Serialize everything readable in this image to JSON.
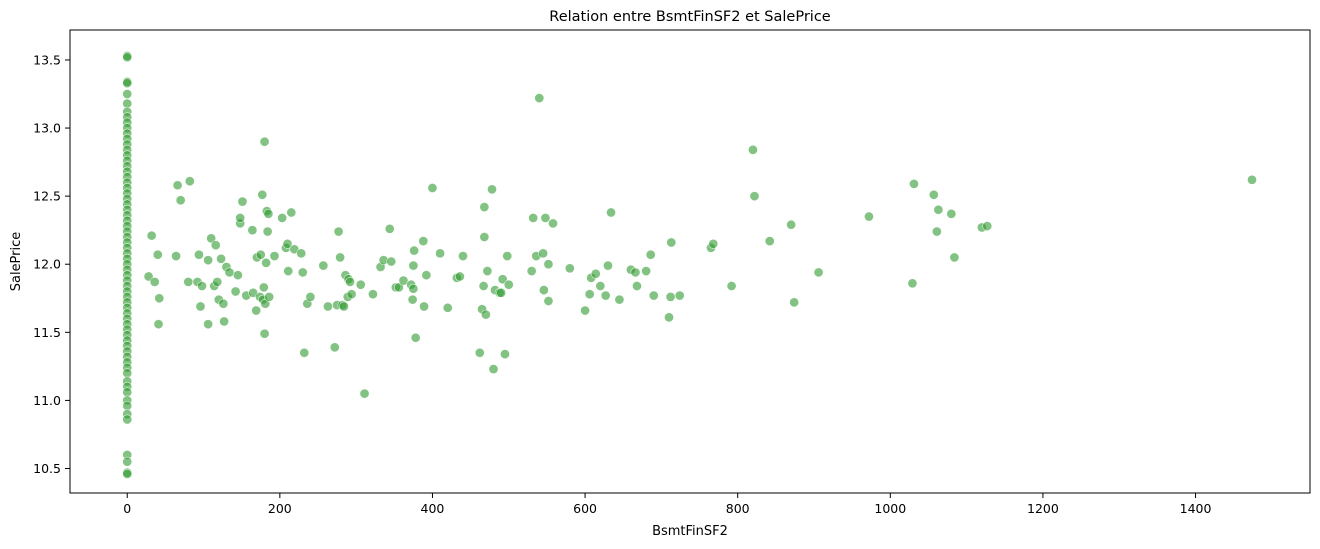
{
  "chart_data": {
    "type": "scatter",
    "title": "Relation entre BsmtFinSF2 et SalePrice",
    "xlabel": "BsmtFinSF2",
    "ylabel": "SalePrice",
    "xlim": [
      -75,
      1550
    ],
    "ylim": [
      10.32,
      13.72
    ],
    "xticks": [
      0,
      200,
      400,
      600,
      800,
      1000,
      1200,
      1400
    ],
    "xtick_labels": [
      "0",
      "200",
      "400",
      "600",
      "800",
      "1000",
      "1200",
      "1400"
    ],
    "yticks": [
      10.5,
      11.0,
      11.5,
      12.0,
      12.5,
      13.0,
      13.5
    ],
    "ytick_labels": [
      "10.5",
      "11.0",
      "11.5",
      "12.0",
      "12.5",
      "13.0",
      "13.5"
    ],
    "grid": false,
    "legend": false,
    "point_color": "#2e9a2e",
    "point_edge_color": "#ffffff",
    "point_alpha": 0.6,
    "series": [
      {
        "points": [
          [
            0,
            13.53
          ],
          [
            0,
            13.52
          ],
          [
            0,
            13.34
          ],
          [
            0,
            13.33
          ],
          [
            0,
            13.25
          ],
          [
            0,
            13.18
          ],
          [
            0,
            13.12
          ],
          [
            0,
            13.08
          ],
          [
            0,
            13.04
          ],
          [
            0,
            13.0
          ],
          [
            0,
            12.96
          ],
          [
            0,
            12.92
          ],
          [
            0,
            12.88
          ],
          [
            0,
            12.84
          ],
          [
            0,
            12.8
          ],
          [
            0,
            12.76
          ],
          [
            0,
            12.72
          ],
          [
            0,
            12.68
          ],
          [
            0,
            12.64
          ],
          [
            0,
            12.6
          ],
          [
            0,
            12.56
          ],
          [
            0,
            12.52
          ],
          [
            0,
            12.48
          ],
          [
            0,
            12.44
          ],
          [
            0,
            12.4
          ],
          [
            0,
            12.36
          ],
          [
            0,
            12.32
          ],
          [
            0,
            12.28
          ],
          [
            0,
            12.24
          ],
          [
            0,
            12.2
          ],
          [
            0,
            12.16
          ],
          [
            0,
            12.12
          ],
          [
            0,
            12.08
          ],
          [
            0,
            12.04
          ],
          [
            0,
            12.0
          ],
          [
            0,
            11.96
          ],
          [
            0,
            11.92
          ],
          [
            0,
            11.88
          ],
          [
            0,
            11.84
          ],
          [
            0,
            11.8
          ],
          [
            0,
            11.76
          ],
          [
            0,
            11.72
          ],
          [
            0,
            11.68
          ],
          [
            0,
            11.64
          ],
          [
            0,
            11.6
          ],
          [
            0,
            11.56
          ],
          [
            0,
            11.52
          ],
          [
            0,
            11.48
          ],
          [
            0,
            11.44
          ],
          [
            0,
            11.4
          ],
          [
            0,
            11.36
          ],
          [
            0,
            11.32
          ],
          [
            0,
            11.28
          ],
          [
            0,
            11.24
          ],
          [
            0,
            11.2
          ],
          [
            0,
            11.14
          ],
          [
            0,
            11.1
          ],
          [
            0,
            11.06
          ],
          [
            0,
            11.0
          ],
          [
            0,
            10.96
          ],
          [
            0,
            10.9
          ],
          [
            0,
            10.86
          ],
          [
            0,
            10.6
          ],
          [
            0,
            10.55
          ],
          [
            0,
            10.47
          ],
          [
            0,
            10.46
          ],
          [
            28,
            11.91
          ],
          [
            32,
            12.21
          ],
          [
            36,
            11.87
          ],
          [
            40,
            12.07
          ],
          [
            41,
            11.56
          ],
          [
            42,
            11.75
          ],
          [
            64,
            12.06
          ],
          [
            66,
            12.58
          ],
          [
            70,
            12.47
          ],
          [
            80,
            11.87
          ],
          [
            82,
            12.61
          ],
          [
            92,
            11.87
          ],
          [
            94,
            12.07
          ],
          [
            96,
            11.69
          ],
          [
            98,
            11.84
          ],
          [
            106,
            11.56
          ],
          [
            106,
            12.03
          ],
          [
            110,
            12.19
          ],
          [
            114,
            11.84
          ],
          [
            116,
            12.14
          ],
          [
            118,
            11.87
          ],
          [
            120,
            11.74
          ],
          [
            123,
            12.04
          ],
          [
            126,
            11.71
          ],
          [
            127,
            11.58
          ],
          [
            130,
            11.98
          ],
          [
            134,
            11.94
          ],
          [
            142,
            11.8
          ],
          [
            145,
            11.92
          ],
          [
            148,
            12.3
          ],
          [
            148,
            12.34
          ],
          [
            151,
            12.46
          ],
          [
            156,
            11.77
          ],
          [
            164,
            12.25
          ],
          [
            165,
            11.79
          ],
          [
            169,
            11.66
          ],
          [
            170,
            12.05
          ],
          [
            174,
            11.76
          ],
          [
            175,
            12.07
          ],
          [
            177,
            12.51
          ],
          [
            178,
            11.74
          ],
          [
            179,
            11.83
          ],
          [
            180,
            12.9
          ],
          [
            180,
            11.49
          ],
          [
            181,
            11.71
          ],
          [
            182,
            12.01
          ],
          [
            183,
            12.39
          ],
          [
            184,
            12.24
          ],
          [
            185,
            12.37
          ],
          [
            186,
            11.76
          ],
          [
            193,
            12.06
          ],
          [
            203,
            12.34
          ],
          [
            208,
            12.12
          ],
          [
            210,
            12.15
          ],
          [
            211,
            11.95
          ],
          [
            215,
            12.38
          ],
          [
            219,
            12.11
          ],
          [
            228,
            12.08
          ],
          [
            230,
            11.94
          ],
          [
            232,
            11.35
          ],
          [
            236,
            11.71
          ],
          [
            240,
            11.76
          ],
          [
            257,
            11.99
          ],
          [
            263,
            11.69
          ],
          [
            272,
            11.39
          ],
          [
            275,
            11.7
          ],
          [
            277,
            12.24
          ],
          [
            279,
            12.05
          ],
          [
            282,
            11.7
          ],
          [
            284,
            11.69
          ],
          [
            286,
            11.92
          ],
          [
            289,
            11.76
          ],
          [
            290,
            11.89
          ],
          [
            292,
            11.87
          ],
          [
            294,
            11.78
          ],
          [
            306,
            11.85
          ],
          [
            311,
            11.05
          ],
          [
            322,
            11.78
          ],
          [
            332,
            11.98
          ],
          [
            336,
            12.03
          ],
          [
            344,
            12.26
          ],
          [
            346,
            12.02
          ],
          [
            352,
            11.83
          ],
          [
            356,
            11.83
          ],
          [
            362,
            11.88
          ],
          [
            372,
            11.85
          ],
          [
            374,
            11.74
          ],
          [
            375,
            11.99
          ],
          [
            375,
            11.82
          ],
          [
            376,
            12.1
          ],
          [
            378,
            11.46
          ],
          [
            388,
            12.17
          ],
          [
            389,
            11.69
          ],
          [
            392,
            11.92
          ],
          [
            400,
            12.56
          ],
          [
            410,
            12.08
          ],
          [
            420,
            11.68
          ],
          [
            432,
            11.9
          ],
          [
            436,
            11.91
          ],
          [
            440,
            12.06
          ],
          [
            462,
            11.35
          ],
          [
            465,
            11.67
          ],
          [
            467,
            11.84
          ],
          [
            468,
            12.42
          ],
          [
            468,
            12.2
          ],
          [
            470,
            11.63
          ],
          [
            472,
            11.95
          ],
          [
            478,
            12.55
          ],
          [
            480,
            11.23
          ],
          [
            482,
            11.81
          ],
          [
            488,
            11.79
          ],
          [
            490,
            11.79
          ],
          [
            492,
            11.89
          ],
          [
            495,
            11.34
          ],
          [
            498,
            12.06
          ],
          [
            500,
            11.85
          ],
          [
            530,
            11.95
          ],
          [
            532,
            12.34
          ],
          [
            536,
            12.06
          ],
          [
            540,
            13.22
          ],
          [
            545,
            12.08
          ],
          [
            546,
            11.81
          ],
          [
            548,
            12.34
          ],
          [
            552,
            12.0
          ],
          [
            552,
            11.73
          ],
          [
            558,
            12.3
          ],
          [
            580,
            11.97
          ],
          [
            600,
            11.66
          ],
          [
            606,
            11.78
          ],
          [
            608,
            11.9
          ],
          [
            614,
            11.93
          ],
          [
            620,
            11.84
          ],
          [
            627,
            11.77
          ],
          [
            630,
            11.99
          ],
          [
            634,
            12.38
          ],
          [
            645,
            11.74
          ],
          [
            660,
            11.96
          ],
          [
            666,
            11.94
          ],
          [
            668,
            11.84
          ],
          [
            680,
            11.95
          ],
          [
            686,
            12.07
          ],
          [
            690,
            11.77
          ],
          [
            710,
            11.61
          ],
          [
            712,
            11.76
          ],
          [
            713,
            12.16
          ],
          [
            724,
            11.77
          ],
          [
            765,
            12.12
          ],
          [
            768,
            12.15
          ],
          [
            792,
            11.84
          ],
          [
            820,
            12.84
          ],
          [
            822,
            12.5
          ],
          [
            842,
            12.17
          ],
          [
            870,
            12.29
          ],
          [
            874,
            11.72
          ],
          [
            906,
            11.94
          ],
          [
            972,
            12.35
          ],
          [
            1029,
            11.86
          ],
          [
            1031,
            12.59
          ],
          [
            1057,
            12.51
          ],
          [
            1061,
            12.24
          ],
          [
            1063,
            12.4
          ],
          [
            1080,
            12.37
          ],
          [
            1084,
            12.05
          ],
          [
            1120,
            12.27
          ],
          [
            1127,
            12.28
          ],
          [
            1474,
            12.62
          ]
        ]
      }
    ]
  }
}
